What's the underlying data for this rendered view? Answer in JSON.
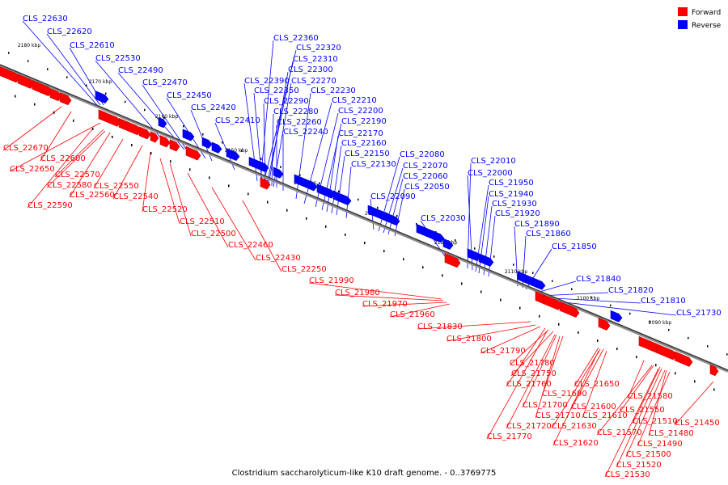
{
  "caption": "Clostridium saccharolyticum-like K10 draft genome. - 0..3769775",
  "legend": [
    {
      "label": "Forward",
      "color": "#ff0000"
    },
    {
      "label": "Reverse",
      "color": "#0000ff"
    }
  ],
  "colors": {
    "forward": "#ff0000",
    "forward_dark": "#c00000",
    "reverse": "#0000ff",
    "reverse_dark": "#0000b0",
    "backbone": "#909090",
    "backbone_dark": "#404040"
  },
  "axis_ticks": [
    "2180 kbp",
    "2170 kbp",
    "2160 kbp",
    "2150 kbp",
    "2140 kbp",
    "2130 kbp",
    "2120 kbp",
    "2110 kbp",
    "2100 kbp",
    "2090 kbp"
  ],
  "reverse_labels": [
    "CLS_22630",
    "CLS_22620",
    "CLS_22610",
    "CLS_22530",
    "CLS_22490",
    "CLS_22470",
    "CLS_22450",
    "CLS_22420",
    "CLS_22410",
    "CLS_22360",
    "CLS_22320",
    "CLS_22310",
    "CLS_22300",
    "CLS_22270",
    "CLS_22390",
    "CLS_22350",
    "CLS_22230",
    "CLS_22290",
    "CLS_22210",
    "CLS_22280",
    "CLS_22200",
    "CLS_22260",
    "CLS_22190",
    "CLS_22240",
    "CLS_22170",
    "CLS_22160",
    "CLS_22150",
    "CLS_22130",
    "CLS_22080",
    "CLS_22070",
    "CLS_22060",
    "CLS_22050",
    "CLS_22090",
    "CLS_22030",
    "CLS_22010",
    "CLS_22000",
    "CLS_21950",
    "CLS_21940",
    "CLS_21930",
    "CLS_21920",
    "CLS_21890",
    "CLS_21860",
    "CLS_21850",
    "CLS_21840",
    "CLS_21820",
    "CLS_21810",
    "CLS_21730"
  ],
  "forward_labels": [
    "CLS_22670",
    "CLS_22600",
    "CLS_22650",
    "CLS_22570",
    "CLS_22580",
    "CLS_22550",
    "CLS_22560",
    "CLS_22540",
    "CLS_22590",
    "CLS_22520",
    "CLS_22510",
    "CLS_22500",
    "CLS_22460",
    "CLS_22430",
    "CLS_22250",
    "CLS_21990",
    "CLS_21980",
    "CLS_21970",
    "CLS_21960",
    "CLS_21830",
    "CLS_21800",
    "CLS_21790",
    "CLS_21780",
    "CLS_21750",
    "CLS_21760",
    "CLS_21690",
    "CLS_21650",
    "CLS_21700",
    "CLS_21600",
    "CLS_21710",
    "CLS_21610",
    "CLS_21720",
    "CLS_21630",
    "CLS_21770",
    "CLS_21620",
    "CLS_21580",
    "CLS_21550",
    "CLS_21510",
    "CLS_21450",
    "CLS_21570",
    "CLS_21480",
    "CLS_21490",
    "CLS_21500",
    "CLS_21520",
    "CLS_21530"
  ]
}
